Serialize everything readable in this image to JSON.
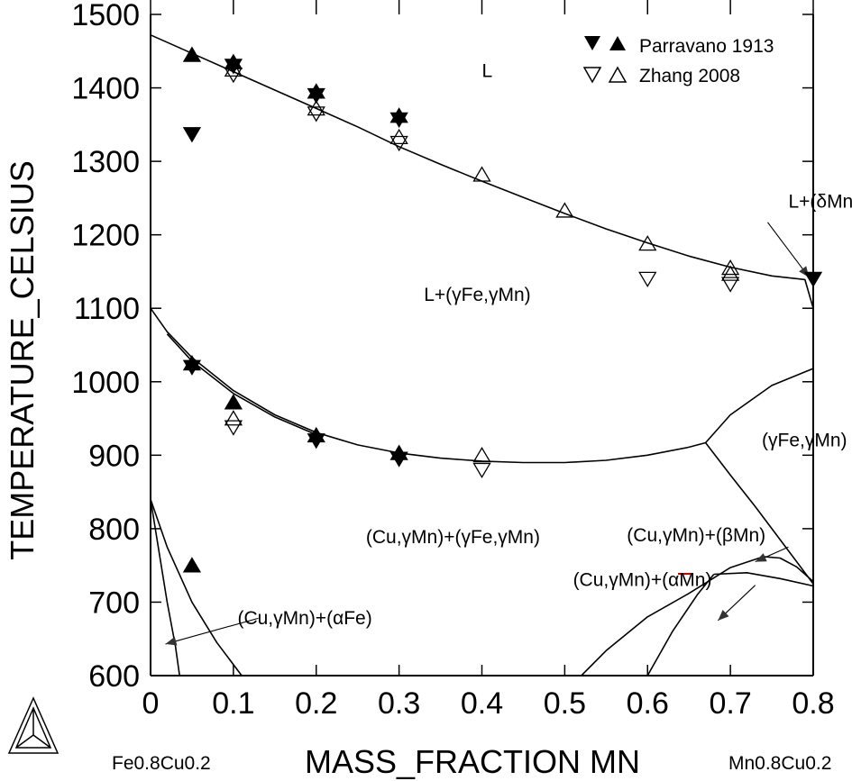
{
  "chart_data": {
    "type": "scatter",
    "xlabel": "MASS_FRACTION MN",
    "ylabel": "TEMPERATURE_CELSIUS",
    "xlim": [
      0,
      0.8
    ],
    "ylim": [
      600,
      1500
    ],
    "x_ticks": [
      "0",
      "0.1",
      "0.2",
      "0.3",
      "0.4",
      "0.5",
      "0.6",
      "0.7",
      "0.8"
    ],
    "y_ticks": [
      "600",
      "700",
      "800",
      "900",
      "1000",
      "1100",
      "1200",
      "1300",
      "1400",
      "1500"
    ],
    "x_left_label": "Fe0.8Cu0.2",
    "x_right_label": "Mn0.8Cu0.2",
    "legend": {
      "placement": "top-right",
      "entries": [
        {
          "label": "Parravano 1913",
          "markers": [
            "filled-down-triangle",
            "filled-up-triangle"
          ]
        },
        {
          "label": "Zhang 2008",
          "markers": [
            "open-down-triangle",
            "open-up-triangle"
          ]
        }
      ]
    },
    "phase_labels": [
      {
        "text": "L",
        "x": 0.4,
        "y": 1415
      },
      {
        "text": "L+(δMn)",
        "x": 0.77,
        "y": 1237
      },
      {
        "text": "L+(γFe,γMn)",
        "x": 0.33,
        "y": 1110
      },
      {
        "text": "(γFe,γMn)",
        "x": 0.738,
        "y": 912
      },
      {
        "text": "(Cu,γMn)+(γFe,γMn)",
        "x": 0.26,
        "y": 780
      },
      {
        "text": "(Cu,γMn)+(βMn)",
        "x": 0.575,
        "y": 783
      },
      {
        "text": "(Cu,γMn)+(αMn)",
        "x": 0.51,
        "y": 722
      },
      {
        "text": "(Cu,γMn)+(αFe)",
        "x": 0.105,
        "y": 670
      }
    ],
    "series": [
      {
        "name": "Parravano 1913",
        "marker": "filled-down-triangle",
        "x": [
          0.05,
          0.1,
          0.2,
          0.3,
          0.05,
          0.2,
          0.3,
          0.8
        ],
        "y": [
          1337,
          1430,
          1390,
          1357,
          1020,
          920,
          895,
          1140
        ]
      },
      {
        "name": "Parravano 1913",
        "marker": "filled-up-triangle",
        "x": [
          0.05,
          0.1,
          0.2,
          0.3,
          0.05,
          0.1,
          0.2,
          0.3,
          0.05
        ],
        "y": [
          1445,
          1435,
          1395,
          1362,
          1025,
          972,
          927,
          903,
          750
        ]
      },
      {
        "name": "Zhang 2008",
        "marker": "open-down-triangle",
        "x": [
          0.1,
          0.2,
          0.3,
          0.1,
          0.4,
          0.6,
          0.7
        ],
        "y": [
          1418,
          1365,
          1325,
          938,
          880,
          1140,
          1133
        ]
      },
      {
        "name": "Zhang 2008",
        "marker": "open-up-triangle",
        "x": [
          0.1,
          0.2,
          0.3,
          0.4,
          0.5,
          0.6,
          0.7,
          0.1,
          0.4,
          0.7
        ],
        "y": [
          1425,
          1372,
          1333,
          1282,
          1233,
          1188,
          1155,
          950,
          900,
          1147
        ]
      }
    ],
    "lines": [
      {
        "name": "liquidus",
        "x": [
          0,
          0.05,
          0.1,
          0.15,
          0.2,
          0.25,
          0.3,
          0.35,
          0.4,
          0.45,
          0.5,
          0.55,
          0.6,
          0.65,
          0.7,
          0.75,
          0.79,
          0.8
        ],
        "y": [
          1472,
          1447,
          1422,
          1397,
          1372,
          1347,
          1320,
          1296,
          1273,
          1251,
          1229,
          1208,
          1189,
          1171,
          1156,
          1144,
          1139,
          1100
        ]
      },
      {
        "name": "solidus-upper",
        "x": [
          0,
          0.02,
          0.05,
          0.1,
          0.15,
          0.2,
          0.25,
          0.3,
          0.35,
          0.4,
          0.45,
          0.5,
          0.55,
          0.6,
          0.65,
          0.67
        ],
        "y": [
          1100,
          1068,
          1033,
          988,
          955,
          931,
          914,
          903,
          896,
          892,
          890,
          890,
          893,
          900,
          911,
          917
        ]
      },
      {
        "name": "solidus-lower",
        "x": [
          0.02,
          0.05,
          0.1,
          0.15,
          0.2
        ],
        "y": [
          1065,
          1028,
          984,
          952,
          928
        ]
      },
      {
        "name": "gamma-boundary-upper",
        "x": [
          0.67,
          0.7,
          0.75,
          0.8
        ],
        "y": [
          917,
          955,
          995,
          1018
        ]
      },
      {
        "name": "gamma-boundary-lower",
        "x": [
          0.67,
          0.7,
          0.73,
          0.76,
          0.79,
          0.8
        ],
        "y": [
          917,
          873,
          830,
          785,
          740,
          725
        ]
      },
      {
        "name": "beta-dome",
        "x": [
          0.52,
          0.55,
          0.6,
          0.65,
          0.7,
          0.74,
          0.76,
          0.78,
          0.8
        ],
        "y": [
          600,
          634,
          680,
          712,
          747,
          762,
          760,
          748,
          728
        ]
      },
      {
        "name": "beta-alpha-boundary",
        "x": [
          0.6,
          0.63,
          0.66,
          0.68
        ],
        "y": [
          600,
          660,
          710,
          738
        ]
      },
      {
        "name": "alpha-boundary",
        "x": [
          0.68,
          0.72,
          0.76,
          0.8
        ],
        "y": [
          738,
          740,
          732,
          722
        ]
      },
      {
        "name": "alpha-fe-left",
        "x": [
          0,
          0.01,
          0.02,
          0.03,
          0.035
        ],
        "y": [
          840,
          770,
          700,
          640,
          600
        ]
      },
      {
        "name": "alpha-fe-right",
        "x": [
          0,
          0.02,
          0.05,
          0.08,
          0.11
        ],
        "y": [
          840,
          775,
          700,
          645,
          600
        ]
      }
    ],
    "arrows": [
      {
        "from": [
          0.745,
          1217
        ],
        "to": [
          0.795,
          1142
        ]
      },
      {
        "from": [
          0.77,
          775
        ],
        "to": [
          0.73,
          755
        ]
      },
      {
        "from": [
          0.73,
          723
        ],
        "to": [
          0.685,
          675
        ]
      },
      {
        "from": [
          0.13,
          678
        ],
        "to": [
          0.018,
          643
        ]
      }
    ]
  }
}
